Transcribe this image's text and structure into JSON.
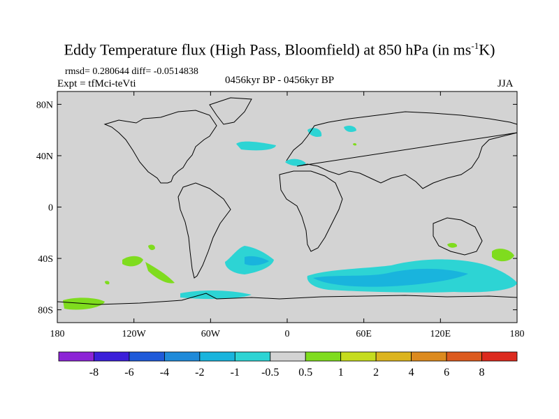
{
  "title": {
    "main": "Eddy Temperature flux (High Pass, Bloomfield) at 850 hPa (in ms",
    "sup": "-1",
    "end": "K)"
  },
  "stats": "rmsd= 0.280644 diff= -0.0514838",
  "expt": "Expt = tfMci-teVti",
  "period": "0456kyr BP - 0456kyr BP",
  "season": "JJA",
  "map": {
    "land_sea_fill": "#d3d3d3",
    "coast_color": "#000000",
    "lon_labels": [
      "180",
      "120W",
      "60W",
      "0",
      "60E",
      "120E",
      "180"
    ],
    "lat_labels": [
      "80N",
      "40N",
      "0",
      "40S",
      "80S"
    ]
  },
  "colorbar": {
    "colors": [
      "#8c24d6",
      "#3b1fd9",
      "#1f5ad9",
      "#1f8ad9",
      "#19b4dd",
      "#2dd4d4",
      "#d3d3d3",
      "#7fdc1e",
      "#c5dc1e",
      "#dcb41e",
      "#dc8a1e",
      "#dc5a1e",
      "#dc2a1e"
    ],
    "labels": [
      "-8",
      "-6",
      "-4",
      "-2",
      "-1",
      "-0.5",
      "0.5",
      "1",
      "2",
      "4",
      "6",
      "8"
    ]
  }
}
